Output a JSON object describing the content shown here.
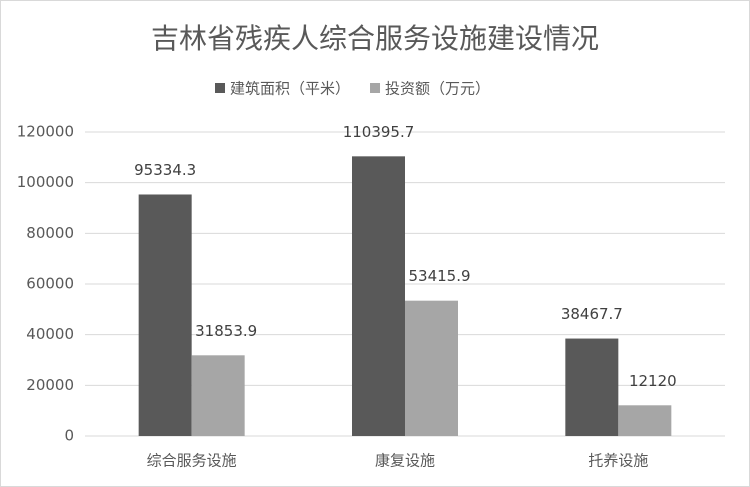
{
  "chart_data": {
    "type": "bar",
    "title": "吉林省残疾人综合服务设施建设情况",
    "categories": [
      "综合服务设施",
      "康复设施",
      "托养设施"
    ],
    "series": [
      {
        "name": "建筑面积（平米）",
        "color": "#595959",
        "values": [
          95334.3,
          110395.7,
          38467.7
        ]
      },
      {
        "name": "投资额（万元）",
        "color": "#a6a6a6",
        "values": [
          31853.9,
          53415.9,
          12120
        ]
      }
    ],
    "ylim": [
      0,
      120000
    ],
    "yticks": [
      0,
      20000,
      40000,
      60000,
      80000,
      100000,
      120000
    ],
    "grid": true,
    "legend": "top"
  }
}
